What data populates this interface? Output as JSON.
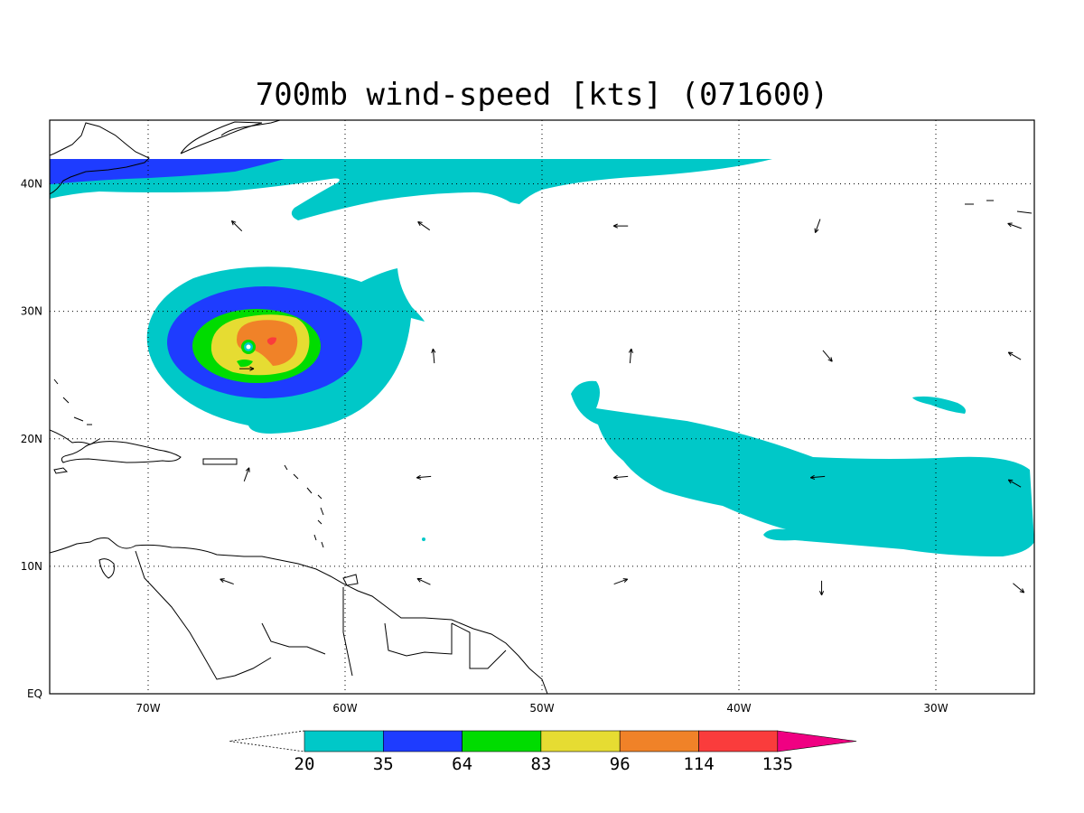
{
  "title": "700mb wind-speed [kts] (071600)",
  "map": {
    "lon_range": [
      -75,
      -25
    ],
    "lat_range": [
      0,
      45
    ],
    "lon_ticks": [
      {
        "value": -70,
        "label": "70W"
      },
      {
        "value": -60,
        "label": "60W"
      },
      {
        "value": -50,
        "label": "50W"
      },
      {
        "value": -40,
        "label": "40W"
      },
      {
        "value": -30,
        "label": "30W"
      }
    ],
    "lat_ticks": [
      {
        "value": 0,
        "label": "EQ"
      },
      {
        "value": 10,
        "label": "10N"
      },
      {
        "value": 20,
        "label": "20N"
      },
      {
        "value": 30,
        "label": "30N"
      },
      {
        "value": 40,
        "label": "40N"
      }
    ],
    "grid": "dotted",
    "wind_vectors_kts_dir_deg": [
      {
        "lon": -65.5,
        "lat": 36.7,
        "dir": 315
      },
      {
        "lon": -56,
        "lat": 36.7,
        "dir": 305
      },
      {
        "lon": -46,
        "lat": 36.7,
        "dir": 270
      },
      {
        "lon": -36,
        "lat": 36.7,
        "dir": 200
      },
      {
        "lon": -26,
        "lat": 36.7,
        "dir": 290
      },
      {
        "lon": -55.5,
        "lat": 26.5,
        "dir": 355
      },
      {
        "lon": -45.5,
        "lat": 26.5,
        "dir": 5
      },
      {
        "lon": -35.5,
        "lat": 26.5,
        "dir": 140
      },
      {
        "lon": -26,
        "lat": 26.5,
        "dir": 300
      },
      {
        "lon": -65,
        "lat": 25.5,
        "dir": 90
      },
      {
        "lon": -56,
        "lat": 17,
        "dir": 265
      },
      {
        "lon": -46,
        "lat": 17,
        "dir": 265
      },
      {
        "lon": -36,
        "lat": 17,
        "dir": 265
      },
      {
        "lon": -26,
        "lat": 16.5,
        "dir": 300
      },
      {
        "lon": -65,
        "lat": 17.2,
        "dir": 20
      },
      {
        "lon": -66,
        "lat": 8.8,
        "dir": 290
      },
      {
        "lon": -56,
        "lat": 8.8,
        "dir": 295
      },
      {
        "lon": -46,
        "lat": 8.8,
        "dir": 70
      },
      {
        "lon": -35.8,
        "lat": 8.3,
        "dir": 180
      },
      {
        "lon": -25.8,
        "lat": 8.3,
        "dir": 130
      }
    ]
  },
  "hurricane": {
    "center_lon": -64.9,
    "center_lat": 27.3,
    "max_category_kts": 135
  },
  "colorbar": {
    "bins": [
      {
        "from": 20,
        "to": 35,
        "color": "#00c8c8"
      },
      {
        "from": 35,
        "to": 64,
        "color": "#1e3cff"
      },
      {
        "from": 64,
        "to": 83,
        "color": "#00dc00"
      },
      {
        "from": 83,
        "to": 96,
        "color": "#e6dc32"
      },
      {
        "from": 96,
        "to": 114,
        "color": "#f08228"
      },
      {
        "from": 114,
        "to": 135,
        "color": "#fa3c3c"
      },
      {
        "from": 135,
        "to": null,
        "color": "#f00082"
      }
    ],
    "labels": [
      "20",
      "35",
      "64",
      "83",
      "96",
      "114",
      "135"
    ]
  },
  "colors": {
    "c20": "#00c8c8",
    "c35": "#1e3cff",
    "c64": "#00dc00",
    "c83": "#e6dc32",
    "c96": "#f08228",
    "c114": "#fa3c3c",
    "c135": "#f00082"
  }
}
